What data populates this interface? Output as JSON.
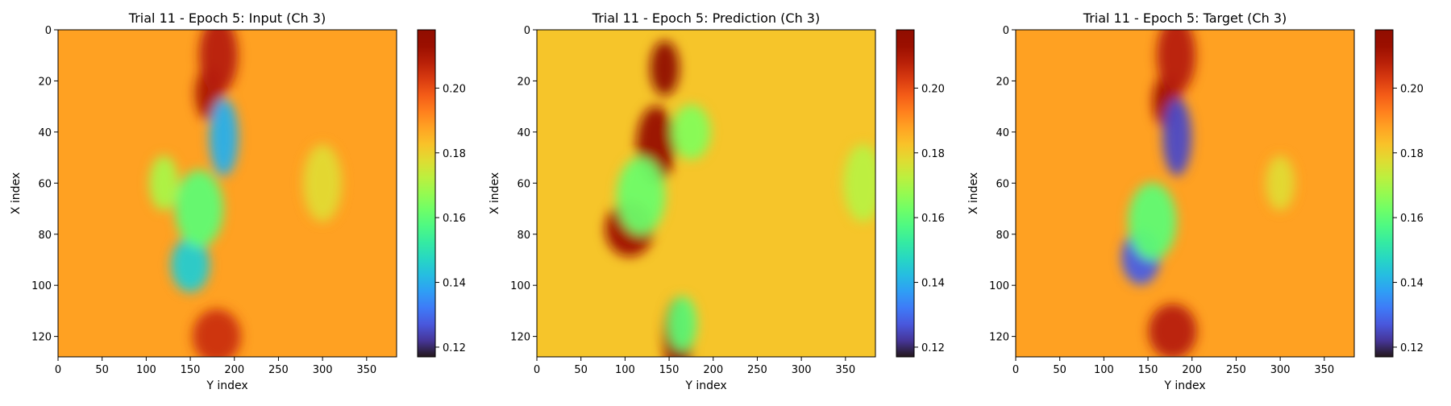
{
  "figure": {
    "panels": [
      {
        "title": "Trial 11 - Epoch 5: Input (Ch 3)",
        "xlabel": "Y index",
        "ylabel": "X index"
      },
      {
        "title": "Trial 11 - Epoch 5: Prediction (Ch 3)",
        "xlabel": "Y index",
        "ylabel": "X index"
      },
      {
        "title": "Trial 11 - Epoch 5: Target (Ch 3)",
        "xlabel": "Y index",
        "ylabel": "X index"
      }
    ],
    "colormap": "turbo",
    "colors": {
      "background_field": "#f4b43b",
      "high": "#a51402",
      "mid": "#a8f03c",
      "low": "#3d8bf6",
      "min": "#30123b"
    }
  },
  "chart_data": [
    {
      "type": "heatmap",
      "title": "Trial 11 - Epoch 5: Input (Ch 3)",
      "xlabel": "Y index",
      "ylabel": "X index",
      "x_ticks": [
        0,
        50,
        100,
        150,
        200,
        250,
        300,
        350
      ],
      "y_ticks": [
        0,
        20,
        40,
        60,
        80,
        100,
        120
      ],
      "xlim": [
        0,
        384
      ],
      "ylim": [
        128,
        0
      ],
      "colorbar": {
        "range": [
          0.117,
          0.218
        ],
        "ticks": [
          "0.12",
          "0.14",
          "0.16",
          "0.18",
          "0.20"
        ]
      },
      "base_value": 0.188,
      "features": [
        {
          "y_index": 172,
          "x_index": 25,
          "value": 0.21
        },
        {
          "y_index": 182,
          "x_index": 10,
          "value": 0.208
        },
        {
          "y_index": 180,
          "x_index": 120,
          "value": 0.205
        },
        {
          "y_index": 188,
          "x_index": 42,
          "value": 0.14
        },
        {
          "y_index": 150,
          "x_index": 92,
          "value": 0.145
        },
        {
          "y_index": 160,
          "x_index": 70,
          "value": 0.16
        },
        {
          "y_index": 120,
          "x_index": 60,
          "value": 0.17
        },
        {
          "y_index": 300,
          "x_index": 60,
          "value": 0.178
        }
      ]
    },
    {
      "type": "heatmap",
      "title": "Trial 11 - Epoch 5: Prediction (Ch 3)",
      "xlabel": "Y index",
      "ylabel": "X index",
      "x_ticks": [
        0,
        50,
        100,
        150,
        200,
        250,
        300,
        350
      ],
      "y_ticks": [
        0,
        20,
        40,
        60,
        80,
        100,
        120
      ],
      "xlim": [
        0,
        384
      ],
      "ylim": [
        128,
        0
      ],
      "colorbar": {
        "range": [
          0.117,
          0.218
        ],
        "ticks": [
          "0.12",
          "0.14",
          "0.16",
          "0.18",
          "0.20"
        ]
      },
      "base_value": 0.182,
      "features": [
        {
          "y_index": 145,
          "x_index": 15,
          "value": 0.218
        },
        {
          "y_index": 135,
          "x_index": 45,
          "value": 0.214
        },
        {
          "y_index": 105,
          "x_index": 78,
          "value": 0.212
        },
        {
          "y_index": 160,
          "x_index": 120,
          "value": 0.216
        },
        {
          "y_index": 175,
          "x_index": 40,
          "value": 0.165
        },
        {
          "y_index": 118,
          "x_index": 65,
          "value": 0.162
        },
        {
          "y_index": 165,
          "x_index": 115,
          "value": 0.16
        },
        {
          "y_index": 370,
          "x_index": 60,
          "value": 0.172
        }
      ]
    },
    {
      "type": "heatmap",
      "title": "Trial 11 - Epoch 5: Target (Ch 3)",
      "xlabel": "Y index",
      "ylabel": "X index",
      "x_ticks": [
        0,
        50,
        100,
        150,
        200,
        250,
        300,
        350
      ],
      "y_ticks": [
        0,
        20,
        40,
        60,
        80,
        100,
        120
      ],
      "xlim": [
        0,
        384
      ],
      "ylim": [
        128,
        0
      ],
      "colorbar": {
        "range": [
          0.117,
          0.218
        ],
        "ticks": [
          "0.12",
          "0.14",
          "0.16",
          "0.18",
          "0.20"
        ]
      },
      "base_value": 0.188,
      "features": [
        {
          "y_index": 172,
          "x_index": 28,
          "value": 0.212
        },
        {
          "y_index": 182,
          "x_index": 10,
          "value": 0.208
        },
        {
          "y_index": 178,
          "x_index": 118,
          "value": 0.208
        },
        {
          "y_index": 183,
          "x_index": 42,
          "value": 0.125
        },
        {
          "y_index": 142,
          "x_index": 89,
          "value": 0.128
        },
        {
          "y_index": 155,
          "x_index": 75,
          "value": 0.16
        },
        {
          "y_index": 300,
          "x_index": 60,
          "value": 0.178
        }
      ]
    }
  ]
}
